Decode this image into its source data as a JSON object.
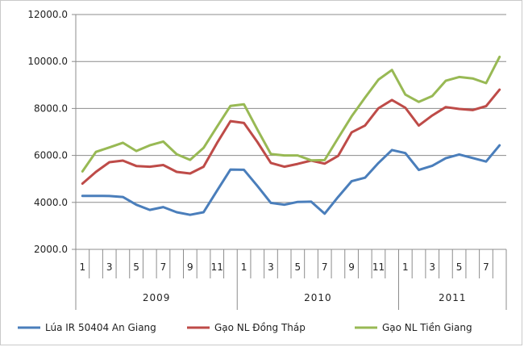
{
  "chart_data": {
    "type": "line",
    "ylim": [
      2000,
      12000
    ],
    "y_ticks": [
      "2000.0",
      "4000.0",
      "6000.0",
      "8000.0",
      "10000.0",
      "12000.0"
    ],
    "y_tick_values": [
      2000,
      4000,
      6000,
      8000,
      10000,
      12000
    ],
    "x_month_labels": [
      "1",
      "",
      "3",
      "",
      "5",
      "",
      "7",
      "",
      "9",
      "",
      "11",
      "",
      "1",
      "",
      "3",
      "",
      "5",
      "",
      "7",
      "",
      "9",
      "",
      "11",
      "",
      "1",
      "",
      "3",
      "",
      "5",
      "",
      "7",
      ""
    ],
    "years": [
      {
        "label": "2009",
        "start": 0,
        "end": 12
      },
      {
        "label": "2010",
        "start": 12,
        "end": 24
      },
      {
        "label": "2011",
        "start": 24,
        "end": 32
      }
    ],
    "grid": "horizontal",
    "legend_position": "bottom",
    "series": [
      {
        "name": "Lúa IR 50404 An Giang",
        "color": "#4a7ebb",
        "values": [
          4280,
          4280,
          4270,
          4230,
          3900,
          3680,
          3800,
          3580,
          3470,
          3580,
          4500,
          5400,
          5390,
          4700,
          3980,
          3900,
          4020,
          4030,
          3520,
          4230,
          4900,
          5050,
          5680,
          6230,
          6100,
          5380,
          5560,
          5880,
          6040,
          5890,
          5740,
          6430
        ]
      },
      {
        "name": "Gạo NL Đồng Tháp",
        "color": "#be4b48",
        "values": [
          4800,
          5300,
          5710,
          5780,
          5550,
          5520,
          5590,
          5300,
          5230,
          5520,
          6530,
          7460,
          7380,
          6570,
          5680,
          5520,
          5640,
          5780,
          5650,
          5980,
          6980,
          7270,
          8010,
          8360,
          8030,
          7270,
          7700,
          8060,
          7980,
          7930,
          8100,
          8800
        ]
      },
      {
        "name": "Gạo NL Tiền Giang",
        "color": "#98b954",
        "values": [
          5320,
          6150,
          6340,
          6540,
          6190,
          6430,
          6590,
          6050,
          5810,
          6320,
          7220,
          8110,
          8180,
          7100,
          6060,
          6000,
          6000,
          5790,
          5800,
          6740,
          7660,
          8460,
          9230,
          9640,
          8590,
          8280,
          8530,
          9180,
          9340,
          9280,
          9080,
          10200
        ]
      }
    ]
  }
}
